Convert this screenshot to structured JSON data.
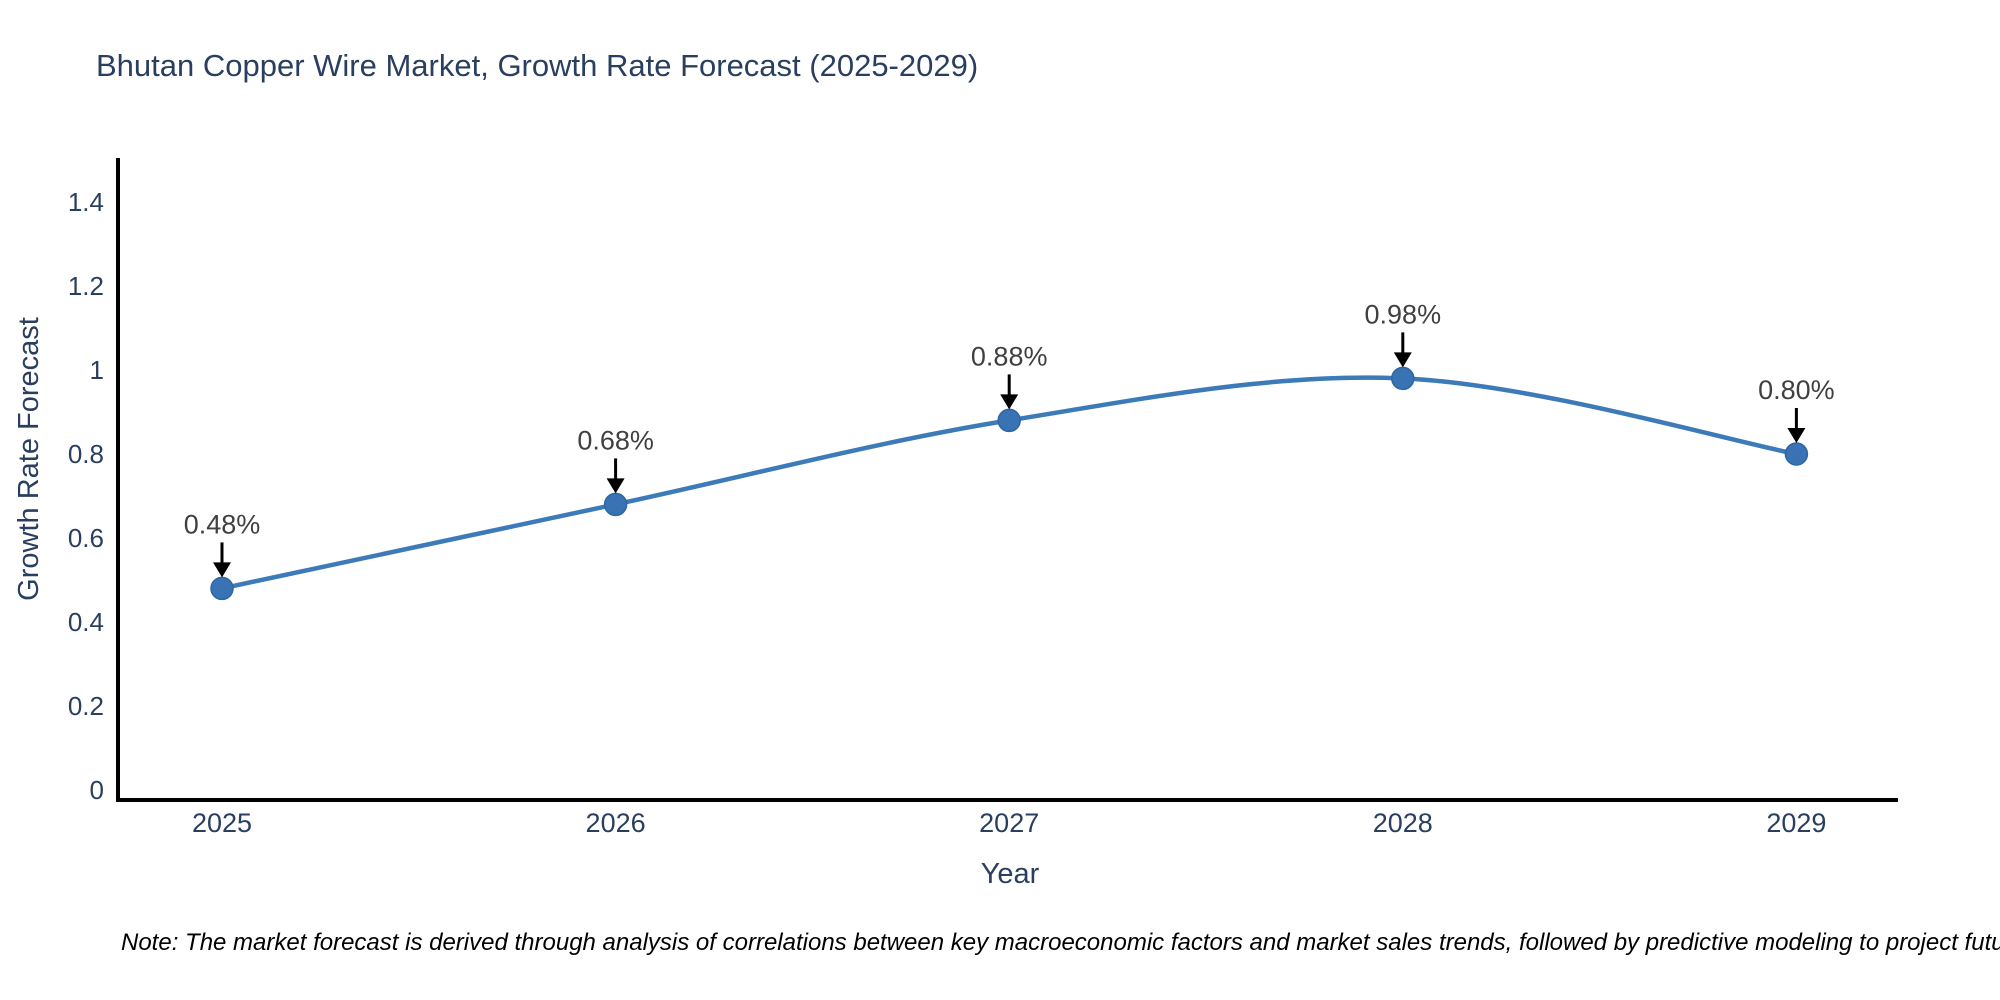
{
  "title": "Bhutan Copper Wire Market, Growth Rate Forecast (2025-2029)",
  "chart_data": {
    "type": "line",
    "x": [
      "2025",
      "2026",
      "2027",
      "2028",
      "2029"
    ],
    "series": [
      {
        "name": "Growth Rate Forecast",
        "values": [
          0.48,
          0.68,
          0.88,
          0.98,
          0.8
        ]
      }
    ],
    "point_labels": [
      "0.48%",
      "0.68%",
      "0.88%",
      "0.98%",
      "0.80%"
    ],
    "title": "Bhutan Copper Wire Market, Growth Rate Forecast (2025-2029)",
    "xlabel": "Year",
    "ylabel": "Growth Rate Forecast",
    "ylim": [
      0,
      1.45
    ],
    "yticks": [
      0,
      0.2,
      0.4,
      0.6,
      0.8,
      1,
      1.2,
      1.4
    ],
    "ytick_labels": [
      "0",
      "0.2",
      "0.4",
      "0.6",
      "0.8",
      "1",
      "1.2",
      "1.4"
    ],
    "line_shape": "spline",
    "grid": false,
    "legend": "none",
    "annotations": "value label with down arrow above each point"
  },
  "note": "Note: The market forecast is derived through analysis of correlations between key macroeconomic factors and market sales trends, followed by predictive modeling to project future sales",
  "colors": {
    "line": "#3d7ab8",
    "marker": "#3973b4",
    "marker_edge": "#2d66a3",
    "axis": "#000000",
    "tick_text": "#2a3f5f",
    "title_text": "#2a3f5f",
    "annotation_text": "#404040",
    "arrow": "#000000",
    "background": "#ffffff"
  }
}
